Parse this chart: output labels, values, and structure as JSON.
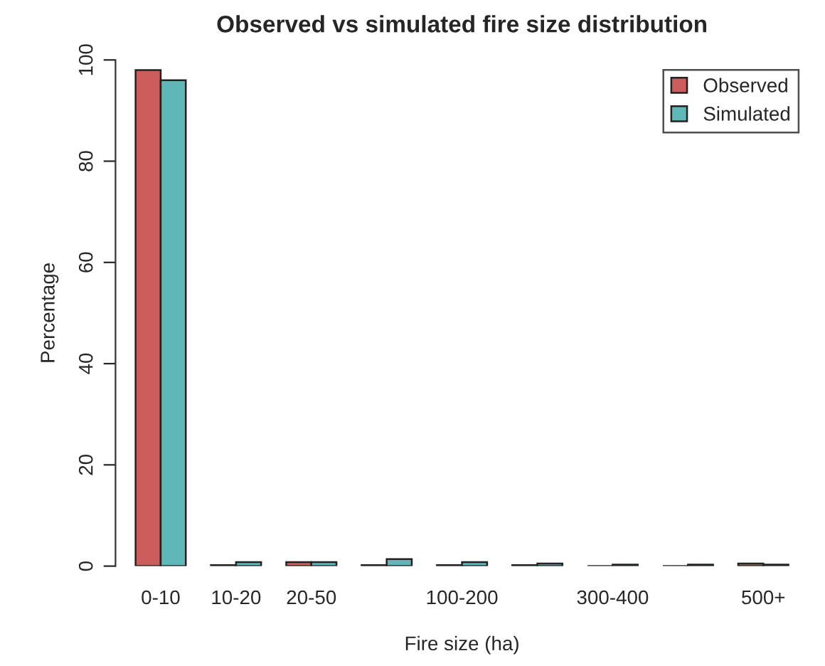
{
  "chart_data": {
    "type": "bar",
    "title": "Observed vs simulated fire size distribution",
    "xlabel": "Fire size (ha)",
    "ylabel": "Percentage",
    "categories": [
      "0-10",
      "10-20",
      "20-50",
      null,
      "100-200",
      null,
      "300-400",
      null,
      "500+"
    ],
    "series": [
      {
        "name": "Observed",
        "color": "#cd5c5c",
        "values": [
          98,
          0.2,
          0.8,
          0.2,
          0.2,
          0.2,
          null,
          null,
          0.5
        ]
      },
      {
        "name": "Simulated",
        "color": "#5fb7b7",
        "values": [
          96,
          0.8,
          0.8,
          1.4,
          0.8,
          0.5,
          0.3,
          0.3,
          0.3
        ]
      }
    ],
    "ylim": [
      0,
      100
    ],
    "yticks": [
      0,
      20,
      40,
      60,
      80,
      100
    ],
    "grid": false,
    "legend": "top right"
  }
}
